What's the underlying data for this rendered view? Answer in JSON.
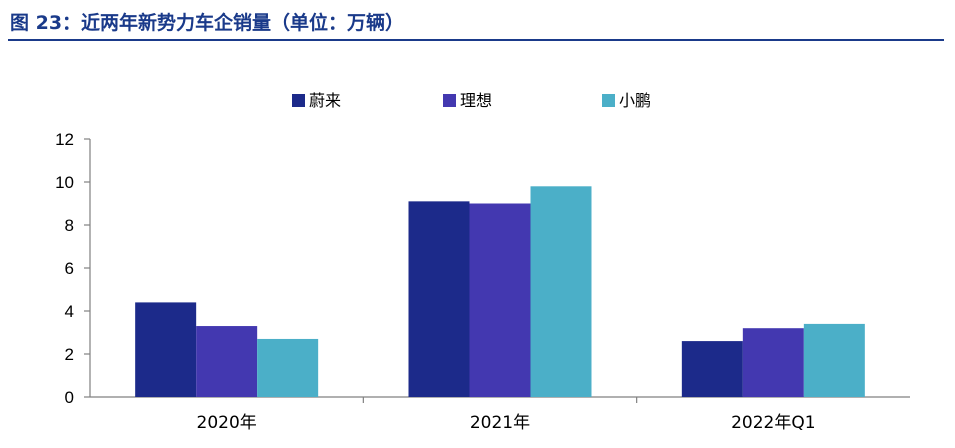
{
  "figure": {
    "title": "图 23：近两年新势力车企销量（单位：万辆）"
  },
  "colors": {
    "title": "#1a3a8a",
    "axis": "#808080"
  },
  "chart_data": {
    "type": "bar",
    "categories": [
      "2020年",
      "2021年",
      "2022年Q1"
    ],
    "series": [
      {
        "name": "蔚来",
        "values": [
          4.4,
          9.1,
          2.6
        ],
        "color": "#1c2a8a"
      },
      {
        "name": "理想",
        "values": [
          3.3,
          9.0,
          3.2
        ],
        "color": "#4338b0"
      },
      {
        "name": "小鹏",
        "values": [
          2.7,
          9.8,
          3.4
        ],
        "color": "#4bafc8"
      }
    ],
    "ylim": [
      0,
      12
    ],
    "yticks": [
      0,
      2,
      4,
      6,
      8,
      10,
      12
    ],
    "legend_position": "top-center",
    "grid": false,
    "xlabel": "",
    "ylabel": ""
  }
}
